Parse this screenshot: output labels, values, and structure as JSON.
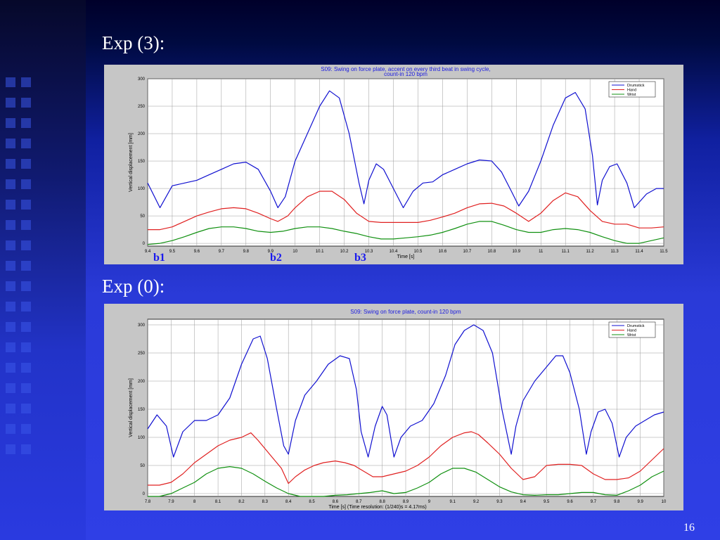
{
  "slide": {
    "exp3_title": "Exp (3):",
    "exp0_title": "Exp (0):",
    "page_number": "16",
    "beats": [
      "b1",
      "b2",
      "b3"
    ]
  },
  "chart_data": [
    {
      "type": "line",
      "title": "S09: Swing on force plate, accent on every third beat in swing cycle,",
      "subtitle": "count-in 120 bpm",
      "xlabel": "Time [s]",
      "ylabel": "Vertical displacement [mm]",
      "xlim": [
        9.4,
        11.5
      ],
      "ylim": [
        -5,
        300
      ],
      "xticks": [
        9.4,
        9.5,
        9.6,
        9.7,
        9.8,
        9.9,
        10,
        10.1,
        10.2,
        10.3,
        10.4,
        10.5,
        10.6,
        10.7,
        10.8,
        10.9,
        11,
        11.1,
        11.2,
        11.3,
        11.4,
        11.5
      ],
      "xtick_labels": [
        "9.4",
        "9.5",
        "9.6",
        "9.7",
        "9.8",
        "9.9",
        "10",
        "10.1",
        "10.2",
        "10.3",
        "10.4",
        "10.5",
        "10.6",
        "10.7",
        "10.8",
        "10.9",
        "11",
        "11.1",
        "11.2",
        "11.3",
        "11.4",
        "11.5"
      ],
      "yticks": [
        0,
        50,
        100,
        150,
        200,
        250,
        300
      ],
      "grid": true,
      "legend_position": "top-right",
      "series": [
        {
          "name": "Drumstick",
          "color": "#1010d0",
          "x": [
            9.4,
            9.45,
            9.5,
            9.55,
            9.6,
            9.65,
            9.7,
            9.75,
            9.8,
            9.85,
            9.9,
            9.93,
            9.96,
            10.0,
            10.05,
            10.1,
            10.14,
            10.18,
            10.22,
            10.26,
            10.28,
            10.3,
            10.33,
            10.36,
            10.4,
            10.44,
            10.48,
            10.52,
            10.56,
            10.6,
            10.65,
            10.7,
            10.75,
            10.8,
            10.84,
            10.88,
            10.91,
            10.95,
            11.0,
            11.05,
            11.1,
            11.14,
            11.18,
            11.21,
            11.23,
            11.25,
            11.28,
            11.31,
            11.35,
            11.38,
            11.43,
            11.47,
            11.5
          ],
          "y": [
            110,
            65,
            105,
            110,
            115,
            125,
            135,
            145,
            148,
            135,
            95,
            65,
            85,
            150,
            200,
            250,
            278,
            265,
            200,
            110,
            72,
            115,
            145,
            135,
            100,
            65,
            95,
            110,
            112,
            125,
            135,
            145,
            152,
            150,
            130,
            95,
            68,
            95,
            150,
            215,
            265,
            275,
            245,
            160,
            70,
            115,
            140,
            145,
            110,
            65,
            90,
            100,
            100
          ]
        },
        {
          "name": "Hand",
          "color": "#e02020",
          "x": [
            9.4,
            9.45,
            9.5,
            9.55,
            9.6,
            9.65,
            9.7,
            9.75,
            9.8,
            9.85,
            9.9,
            9.93,
            9.97,
            10.0,
            10.05,
            10.1,
            10.15,
            10.2,
            10.25,
            10.3,
            10.35,
            10.4,
            10.45,
            10.5,
            10.55,
            10.6,
            10.65,
            10.7,
            10.75,
            10.8,
            10.85,
            10.9,
            10.95,
            11.0,
            11.05,
            11.1,
            11.15,
            11.2,
            11.25,
            11.3,
            11.35,
            11.4,
            11.45,
            11.5
          ],
          "y": [
            25,
            25,
            30,
            40,
            50,
            57,
            63,
            65,
            63,
            55,
            45,
            40,
            50,
            65,
            85,
            95,
            95,
            80,
            55,
            40,
            38,
            38,
            38,
            38,
            42,
            48,
            55,
            65,
            72,
            73,
            68,
            55,
            40,
            55,
            78,
            92,
            85,
            60,
            40,
            35,
            35,
            28,
            28,
            30
          ]
        },
        {
          "name": "Wrist",
          "color": "#109010",
          "x": [
            9.4,
            9.45,
            9.5,
            9.55,
            9.6,
            9.65,
            9.7,
            9.75,
            9.8,
            9.85,
            9.9,
            9.95,
            10.0,
            10.05,
            10.1,
            10.15,
            10.2,
            10.25,
            10.3,
            10.35,
            10.4,
            10.45,
            10.5,
            10.55,
            10.6,
            10.65,
            10.7,
            10.75,
            10.8,
            10.85,
            10.9,
            10.95,
            11.0,
            11.05,
            11.1,
            11.15,
            11.2,
            11.25,
            11.3,
            11.35,
            11.4,
            11.45,
            11.5
          ],
          "y": [
            -2,
            0,
            5,
            12,
            20,
            27,
            30,
            30,
            27,
            22,
            20,
            22,
            27,
            30,
            30,
            27,
            22,
            18,
            12,
            8,
            8,
            10,
            12,
            15,
            20,
            27,
            35,
            40,
            40,
            33,
            25,
            20,
            20,
            25,
            27,
            25,
            20,
            12,
            5,
            0,
            0,
            5,
            10
          ]
        }
      ]
    },
    {
      "type": "line",
      "title": "S09: Swing on force plate, count-in 120 bpm",
      "xlabel": "Time [s] (Time resolution: (1/240)s = 4.17ms)",
      "ylabel": "Vertical displacement [mm]",
      "xlim": [
        7.8,
        10
      ],
      "ylim": [
        -5,
        310
      ],
      "xticks": [
        7.8,
        7.9,
        8,
        8.1,
        8.2,
        8.3,
        8.4,
        8.5,
        8.6,
        8.7,
        8.8,
        8.9,
        9,
        9.1,
        9.2,
        9.3,
        9.4,
        9.5,
        9.6,
        9.7,
        9.8,
        9.9,
        10
      ],
      "xtick_labels": [
        "7.8",
        "7.9",
        "8",
        "8.1",
        "8.2",
        "8.3",
        "8.4",
        "8.5",
        "8.6",
        "8.7",
        "8.8",
        "8.9",
        "9",
        "9.1",
        "9.2",
        "9.3",
        "9.4",
        "9.5",
        "9.6",
        "9.7",
        "9.8",
        "9.9",
        "10"
      ],
      "yticks": [
        0,
        50,
        100,
        150,
        200,
        250,
        300
      ],
      "grid": true,
      "legend_position": "top-right",
      "series": [
        {
          "name": "Drumstick",
          "color": "#1010d0",
          "x": [
            7.8,
            7.84,
            7.88,
            7.91,
            7.95,
            8.0,
            8.05,
            8.1,
            8.15,
            8.2,
            8.25,
            8.28,
            8.31,
            8.35,
            8.38,
            8.4,
            8.43,
            8.47,
            8.52,
            8.57,
            8.62,
            8.66,
            8.69,
            8.71,
            8.74,
            8.77,
            8.8,
            8.82,
            8.85,
            8.88,
            8.92,
            8.97,
            9.02,
            9.07,
            9.11,
            9.15,
            9.19,
            9.23,
            9.27,
            9.31,
            9.35,
            9.37,
            9.4,
            9.45,
            9.5,
            9.54,
            9.57,
            9.6,
            9.64,
            9.67,
            9.69,
            9.72,
            9.75,
            9.78,
            9.81,
            9.84,
            9.88,
            9.92,
            9.96,
            10.0
          ],
          "y": [
            115,
            140,
            120,
            65,
            110,
            130,
            130,
            140,
            170,
            230,
            275,
            280,
            240,
            150,
            85,
            70,
            130,
            175,
            200,
            230,
            245,
            240,
            185,
            110,
            65,
            120,
            155,
            140,
            65,
            100,
            120,
            130,
            160,
            210,
            265,
            290,
            300,
            290,
            250,
            150,
            70,
            120,
            165,
            200,
            225,
            245,
            245,
            215,
            150,
            70,
            110,
            145,
            150,
            125,
            65,
            100,
            120,
            130,
            140,
            145
          ]
        },
        {
          "name": "Hand",
          "color": "#e02020",
          "x": [
            7.8,
            7.85,
            7.9,
            7.95,
            8.0,
            8.05,
            8.1,
            8.15,
            8.2,
            8.24,
            8.27,
            8.3,
            8.33,
            8.37,
            8.4,
            8.43,
            8.47,
            8.51,
            8.55,
            8.6,
            8.64,
            8.68,
            8.72,
            8.76,
            8.8,
            8.85,
            8.9,
            8.95,
            9.0,
            9.05,
            9.1,
            9.15,
            9.18,
            9.21,
            9.25,
            9.3,
            9.35,
            9.4,
            9.45,
            9.5,
            9.55,
            9.6,
            9.65,
            9.7,
            9.75,
            9.8,
            9.85,
            9.9,
            9.95,
            10.0
          ],
          "y": [
            15,
            15,
            20,
            35,
            55,
            70,
            85,
            95,
            100,
            108,
            95,
            80,
            65,
            45,
            18,
            30,
            42,
            50,
            55,
            58,
            55,
            50,
            40,
            30,
            30,
            35,
            40,
            50,
            65,
            85,
            100,
            108,
            110,
            105,
            90,
            70,
            45,
            25,
            30,
            50,
            52,
            52,
            50,
            35,
            25,
            25,
            28,
            40,
            60,
            80
          ]
        },
        {
          "name": "Wrist",
          "color": "#109010",
          "x": [
            7.8,
            7.85,
            7.9,
            7.95,
            8.0,
            8.05,
            8.1,
            8.15,
            8.2,
            8.25,
            8.3,
            8.35,
            8.4,
            8.45,
            8.5,
            8.55,
            8.6,
            8.65,
            8.7,
            8.75,
            8.8,
            8.85,
            8.9,
            8.95,
            9.0,
            9.05,
            9.1,
            9.15,
            9.2,
            9.25,
            9.3,
            9.35,
            9.4,
            9.45,
            9.5,
            9.55,
            9.6,
            9.65,
            9.7,
            9.75,
            9.8,
            9.85,
            9.9,
            9.95,
            10.0
          ],
          "y": [
            -5,
            -5,
            0,
            10,
            20,
            35,
            45,
            48,
            45,
            35,
            22,
            10,
            0,
            -5,
            -5,
            -5,
            -3,
            -2,
            0,
            2,
            5,
            0,
            2,
            10,
            20,
            35,
            45,
            45,
            38,
            25,
            12,
            3,
            -2,
            -3,
            -2,
            -2,
            0,
            2,
            2,
            -2,
            -3,
            5,
            15,
            30,
            40
          ]
        }
      ]
    }
  ]
}
